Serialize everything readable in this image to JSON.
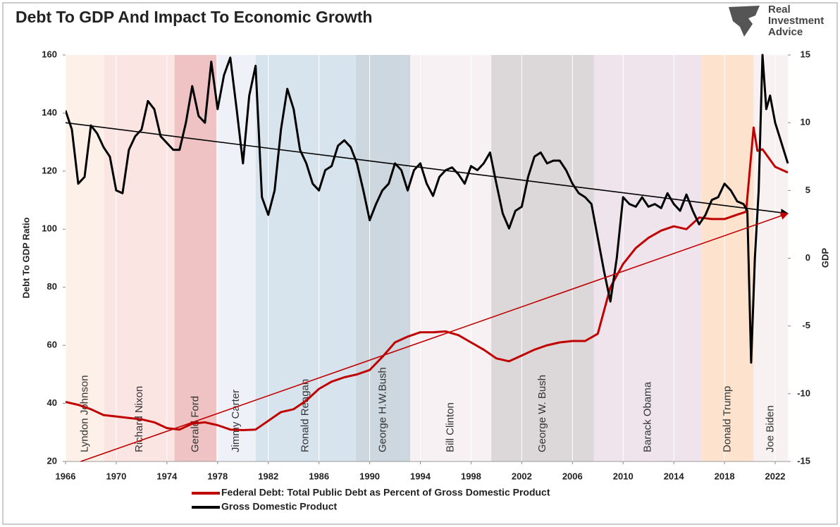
{
  "chart_data": {
    "type": "line",
    "title": "Debt To GDP And Impact To Economic Growth",
    "logo": [
      "Real",
      "Investment",
      "Advice"
    ],
    "ylabel": "Debt To GDP Ratio",
    "y2label": "GDP",
    "xlim": [
      1966,
      2023
    ],
    "xticks": [
      1966,
      1970,
      1974,
      1978,
      1982,
      1986,
      1990,
      1994,
      1998,
      2002,
      2006,
      2010,
      2014,
      2018,
      2022
    ],
    "ylim": [
      20,
      160
    ],
    "yticks": [
      20,
      40,
      60,
      80,
      100,
      120,
      140,
      160
    ],
    "y2lim": [
      -15,
      15
    ],
    "y2ticks": [
      -15,
      -10,
      -5,
      0,
      5,
      10,
      15
    ],
    "grid": true,
    "bands": [
      {
        "label": "Lyndon Johnson",
        "start": 1966,
        "end": 1969.06,
        "color": "#fdf0e8"
      },
      {
        "label": "Richard Nixon",
        "start": 1969.06,
        "end": 1974.6,
        "color": "#fbe5e3"
      },
      {
        "label": "Gerald Ford",
        "start": 1974.6,
        "end": 1977.9,
        "color": "#efc3c3"
      },
      {
        "label": "Jimmy Carter",
        "start": 1977.9,
        "end": 1981.0,
        "color": "#eef2f8"
      },
      {
        "label": "Ronald Reagan",
        "start": 1981.0,
        "end": 1988.9,
        "color": "#d8e4ed"
      },
      {
        "label": "George H.W.Bush",
        "start": 1988.9,
        "end": 1993.2,
        "color": "#cdd7df"
      },
      {
        "label": "Bill Clinton",
        "start": 1993.2,
        "end": 1999.6,
        "color": "#f7f1f4"
      },
      {
        "label": "George W. Bush",
        "start": 1999.6,
        "end": 2007.7,
        "color": "#dcd8d9"
      },
      {
        "label": "Barack Obama",
        "start": 2007.7,
        "end": 2016.2,
        "color": "#efe4ec"
      },
      {
        "label": "Donald Trump",
        "start": 2016.2,
        "end": 2020.3,
        "color": "#fde3cd"
      },
      {
        "label": "Joe Biden",
        "start": 2020.3,
        "end": 2023,
        "color": "#f8f1f1"
      }
    ],
    "series": [
      {
        "name": "Federal Debt: Total Public Debt as Percent of Gross Domestic Product",
        "color": "#c00000",
        "axis": "y",
        "x": [
          1966,
          1967,
          1968,
          1969,
          1970,
          1971,
          1972,
          1973,
          1974,
          1975,
          1976,
          1977,
          1978,
          1979,
          1980,
          1981,
          1982,
          1983,
          1984,
          1985,
          1986,
          1987,
          1988,
          1989,
          1990,
          1991,
          1992,
          1993,
          1994,
          1995,
          1996,
          1997,
          1998,
          1999,
          2000,
          2001,
          2002,
          2003,
          2004,
          2005,
          2006,
          2007,
          2008,
          2009,
          2010,
          2011,
          2012,
          2013,
          2014,
          2015,
          2016,
          2017,
          2018,
          2019,
          2019.7,
          2020.3,
          2020.6,
          2021,
          2022,
          2023
        ],
        "values": [
          40.5,
          39.5,
          38,
          36,
          35.5,
          35,
          34.5,
          33.5,
          31.5,
          31,
          33,
          33.5,
          32.5,
          31,
          30.8,
          31,
          34,
          37,
          38,
          41,
          45,
          47.5,
          49,
          50,
          51.5,
          56,
          61,
          63,
          64.5,
          64.5,
          64.8,
          63.5,
          61,
          58.5,
          55.5,
          54.5,
          56.5,
          58.5,
          60,
          61,
          61.5,
          61.5,
          64,
          80,
          88,
          93.5,
          97,
          99.5,
          101,
          100,
          104,
          103.5,
          103.5,
          105,
          106,
          135,
          127,
          127.5,
          121.5,
          119.5
        ]
      },
      {
        "name": "Gross Domestic Product",
        "color": "#000000",
        "axis": "y2",
        "x": [
          1966,
          1966.5,
          1967,
          1967.5,
          1968,
          1968.5,
          1969,
          1969.5,
          1970,
          1970.5,
          1971,
          1971.5,
          1972,
          1972.5,
          1973,
          1973.5,
          1974,
          1974.5,
          1975,
          1975.5,
          1976,
          1976.5,
          1977,
          1977.5,
          1978,
          1978.5,
          1979,
          1979.5,
          1980,
          1980.5,
          1981,
          1981.5,
          1982,
          1982.5,
          1983,
          1983.5,
          1984,
          1984.5,
          1985,
          1985.5,
          1986,
          1986.5,
          1987,
          1987.5,
          1988,
          1988.5,
          1989,
          1989.5,
          1990,
          1990.5,
          1991,
          1991.5,
          1992,
          1992.5,
          1993,
          1993.5,
          1994,
          1994.5,
          1995,
          1995.5,
          1996,
          1996.5,
          1997,
          1997.5,
          1998,
          1998.5,
          1999,
          1999.5,
          2000,
          2000.5,
          2001,
          2001.5,
          2002,
          2002.5,
          2003,
          2003.5,
          2004,
          2004.5,
          2005,
          2005.5,
          2006,
          2006.5,
          2007,
          2007.5,
          2008,
          2008.5,
          2009,
          2009.5,
          2010,
          2010.5,
          2011,
          2011.5,
          2012,
          2012.5,
          2013,
          2013.5,
          2014,
          2014.5,
          2015,
          2015.5,
          2016,
          2016.5,
          2017,
          2017.5,
          2018,
          2018.5,
          2019,
          2019.5,
          2019.8,
          2020.1,
          2020.4,
          2020.7,
          2021,
          2021.3,
          2021.6,
          2022,
          2022.5,
          2023
        ],
        "values": [
          10.9,
          9.5,
          5.5,
          6,
          9.8,
          9.2,
          8.2,
          7.5,
          5,
          4.8,
          8,
          9,
          9.5,
          11.6,
          11,
          9,
          8.5,
          8,
          8,
          10,
          12.7,
          10.5,
          10,
          14.5,
          11,
          13.5,
          14.8,
          11,
          7,
          12,
          14.2,
          4.5,
          3.2,
          5,
          9.5,
          12.5,
          11,
          8,
          7,
          5.5,
          5,
          6.5,
          6.8,
          8.3,
          8.7,
          8.2,
          7,
          5,
          2.8,
          4,
          5,
          5.5,
          7,
          6.5,
          5,
          6.5,
          7,
          5.5,
          4.6,
          6,
          6.5,
          6.7,
          6.2,
          5.5,
          6.8,
          6.5,
          7,
          7.8,
          5.5,
          3.3,
          2.2,
          3.5,
          3.8,
          6,
          7.5,
          7.8,
          7,
          7.2,
          7.2,
          6.5,
          5.5,
          4.8,
          4.5,
          4,
          1.5,
          -1,
          -3.2,
          0,
          4.5,
          4,
          3.8,
          4.5,
          3.8,
          4,
          3.7,
          4.8,
          4,
          3.5,
          4.7,
          3.5,
          2.5,
          3.2,
          4.3,
          4.5,
          5.5,
          5,
          4.2,
          4,
          3.5,
          -7.7,
          0,
          5,
          15,
          11,
          12,
          10,
          8.5,
          7
        ]
      }
    ],
    "trends": [
      {
        "axis": "y2",
        "color": "#000000",
        "x": [
          1966,
          2023
        ],
        "values": [
          10,
          3.3
        ]
      },
      {
        "axis": "y",
        "color": "#c00000",
        "x": [
          1967.2,
          2023
        ],
        "values": [
          20,
          105.4
        ]
      }
    ]
  }
}
